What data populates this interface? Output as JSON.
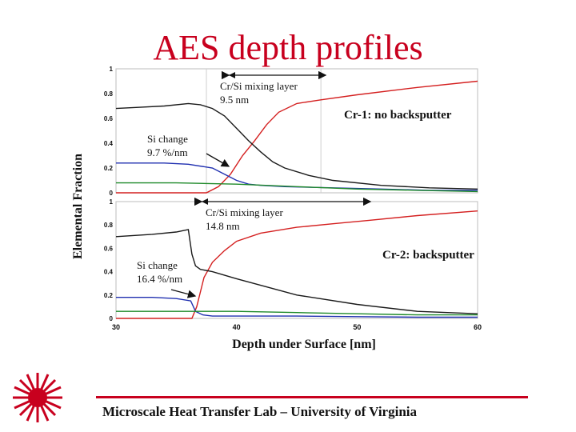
{
  "slide": {
    "title": "AES depth profiles",
    "footer": "Microscale Heat Transfer Lab – University of Virginia",
    "accent_color": "#c8001e",
    "logo_icon": "red-starburst-laser-icon"
  },
  "chart_data": [
    {
      "type": "line",
      "panel": "top",
      "ylabel": "Elemental Fraction",
      "ylim": [
        0,
        1
      ],
      "xlim": [
        30,
        60
      ],
      "yticks": [
        "0",
        "0.2",
        "0.4",
        "0.6",
        "0.8",
        "1"
      ],
      "series": [
        {
          "color": "#d42020",
          "x": [
            30,
            37.5,
            38.5,
            39.5,
            40.5,
            41.5,
            42.5,
            43.5,
            45,
            47,
            50,
            55,
            60
          ],
          "y": [
            0,
            0,
            0.05,
            0.15,
            0.3,
            0.42,
            0.55,
            0.65,
            0.72,
            0.75,
            0.79,
            0.85,
            0.9
          ]
        },
        {
          "color": "#1a1a1a",
          "x": [
            30,
            32,
            34,
            36,
            37,
            38,
            39,
            40,
            41,
            42,
            43,
            44,
            46,
            48,
            52,
            56,
            60
          ],
          "y": [
            0.68,
            0.69,
            0.7,
            0.72,
            0.71,
            0.68,
            0.62,
            0.52,
            0.42,
            0.33,
            0.25,
            0.2,
            0.14,
            0.1,
            0.06,
            0.04,
            0.03
          ]
        },
        {
          "color": "#2030b0",
          "x": [
            30,
            34,
            36,
            38,
            39,
            40,
            41,
            42,
            44,
            48,
            52,
            56,
            60
          ],
          "y": [
            0.24,
            0.24,
            0.23,
            0.2,
            0.15,
            0.1,
            0.07,
            0.06,
            0.05,
            0.04,
            0.03,
            0.02,
            0.02
          ]
        },
        {
          "color": "#1f8a2a",
          "x": [
            30,
            35,
            40,
            45,
            50,
            55,
            60
          ],
          "y": [
            0.08,
            0.08,
            0.07,
            0.05,
            0.03,
            0.02,
            0.01
          ]
        }
      ],
      "annotations": [
        {
          "text_lines": [
            "Cr/Si mixing layer",
            "9.5 nm"
          ]
        },
        {
          "text_lines": [
            "Si change",
            "9.7 %/nm"
          ]
        },
        {
          "text_lines": [
            "Cr-1: no backsputter"
          ]
        }
      ]
    },
    {
      "type": "line",
      "panel": "bottom",
      "ylim": [
        0,
        1
      ],
      "xlim": [
        30,
        60
      ],
      "xlabel": "Depth under Surface [nm]",
      "xticks": [
        "30",
        "40",
        "50",
        "60"
      ],
      "yticks": [
        "0",
        "0.2",
        "0.4",
        "0.6",
        "0.8",
        "1"
      ],
      "series": [
        {
          "color": "#d42020",
          "x": [
            30,
            36.3,
            36.7,
            37.3,
            38,
            39,
            40,
            42,
            45,
            48,
            51,
            55,
            60
          ],
          "y": [
            0,
            0,
            0.1,
            0.35,
            0.48,
            0.58,
            0.66,
            0.73,
            0.78,
            0.81,
            0.84,
            0.88,
            0.92
          ]
        },
        {
          "color": "#1a1a1a",
          "x": [
            30,
            33,
            35,
            36,
            36.3,
            36.6,
            37,
            38,
            40,
            45,
            50,
            55,
            60
          ],
          "y": [
            0.7,
            0.72,
            0.74,
            0.76,
            0.55,
            0.45,
            0.42,
            0.4,
            0.34,
            0.2,
            0.12,
            0.06,
            0.04
          ]
        },
        {
          "color": "#2030b0",
          "x": [
            30,
            33,
            35,
            36.2,
            36.6,
            37.2,
            38,
            40,
            45,
            50,
            55,
            60
          ],
          "y": [
            0.18,
            0.18,
            0.17,
            0.15,
            0.06,
            0.03,
            0.02,
            0.02,
            0.02,
            0.015,
            0.01,
            0.01
          ]
        },
        {
          "color": "#1f8a2a",
          "x": [
            30,
            36,
            40,
            45,
            50,
            55,
            60
          ],
          "y": [
            0.06,
            0.06,
            0.06,
            0.05,
            0.04,
            0.03,
            0.03
          ]
        }
      ],
      "annotations": [
        {
          "text_lines": [
            "Cr/Si mixing layer",
            "14.8 nm"
          ]
        },
        {
          "text_lines": [
            "Si change",
            "16.4 %/nm"
          ]
        },
        {
          "text_lines": [
            "Cr-2: backsputter"
          ]
        }
      ]
    }
  ]
}
